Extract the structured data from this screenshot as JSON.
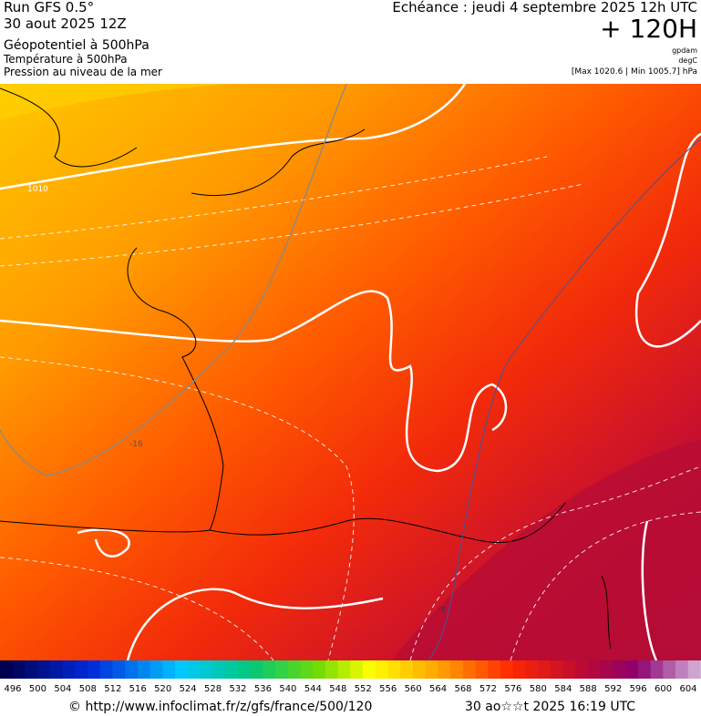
{
  "header": {
    "run": "Run GFS 0.5°",
    "date": "30 aout 2025 12Z",
    "field_main": "Géopotentiel à 500hPa",
    "field_2": "Température à 500hPa",
    "field_3": "Pression au niveau de la mer",
    "valid": "Echéance : jeudi 4 septembre 2025 12h UTC",
    "lead": "+ 120H",
    "unit_1": "gpdam",
    "unit_2": "degC",
    "pressure_range": "[Max 1020.6 | Min 1005.7] hPa"
  },
  "map": {
    "labels": [
      "1010",
      "-16",
      "-8"
    ]
  },
  "colorbar": {
    "labels": [
      496,
      500,
      504,
      508,
      512,
      516,
      520,
      524,
      528,
      532,
      536,
      540,
      544,
      548,
      552,
      556,
      560,
      564,
      568,
      572,
      576,
      580,
      584,
      588,
      592,
      596,
      600,
      604
    ]
  },
  "footer": {
    "source": "© http://www.infoclimat.fr/z/gfs/france/500/120",
    "generated": "30 ao☆☆t 2025 16:19 UTC"
  }
}
